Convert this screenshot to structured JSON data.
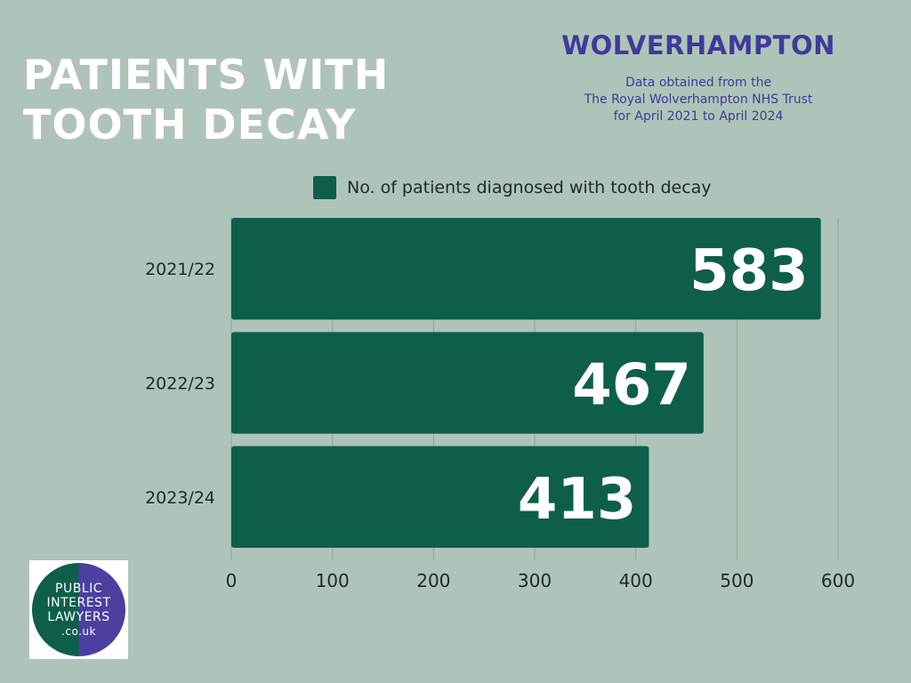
{
  "header": {
    "title_lines": [
      "PATIENTS WITH",
      "TOOTH DECAY"
    ],
    "region": "WOLVERHAMPTON",
    "source_lines": [
      "Data obtained from the",
      "The Royal Wolverhampton NHS Trust",
      "for April 2021 to April 2024"
    ]
  },
  "logo": {
    "lines": [
      "PUBLIC",
      "INTEREST",
      "LAWYERS",
      ".co.uk"
    ],
    "colors": [
      "#0d5f4a",
      "#4b3fa0"
    ]
  },
  "colors": {
    "bar": "#0d5f4a",
    "background": "#afc4b8",
    "title": "#ffffff",
    "accent": "#3f3a9c",
    "grid": "#8fa397"
  },
  "chart_data": {
    "type": "bar",
    "orientation": "horizontal",
    "categories": [
      "2021/22",
      "2022/23",
      "2023/24"
    ],
    "series": [
      {
        "name": "No. of patients diagnosed with tooth decay",
        "values": [
          583,
          467,
          413
        ]
      }
    ],
    "data_labels": [
      "583",
      "467",
      "413"
    ],
    "xlim": [
      0,
      600
    ],
    "xticks": [
      0,
      100,
      200,
      300,
      400,
      500,
      600
    ],
    "grid": true,
    "legend_position": "top"
  }
}
